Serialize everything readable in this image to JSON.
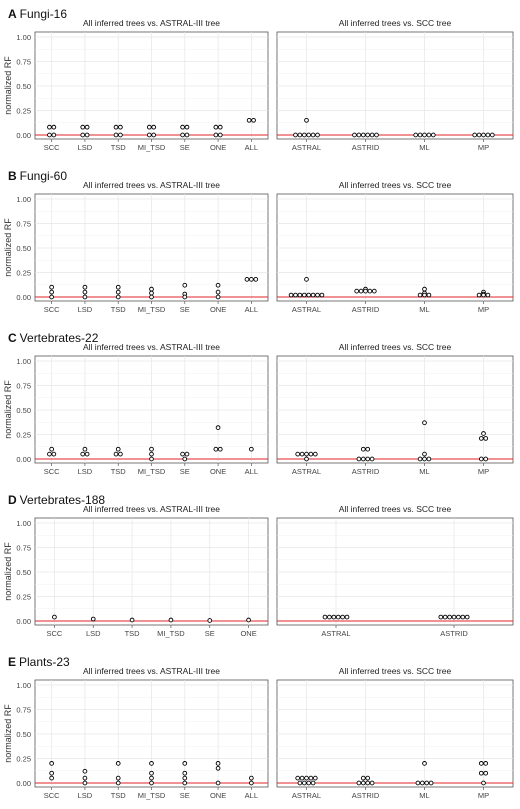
{
  "figure": {
    "panels": [
      {
        "letter": "A",
        "title": "Fungi-16"
      },
      {
        "letter": "B",
        "title": "Fungi-60"
      },
      {
        "letter": "C",
        "title": "Vertebrates-22"
      },
      {
        "letter": "D",
        "title": "Vertebrates-188"
      },
      {
        "letter": "E",
        "title": "Plants-23"
      }
    ],
    "left_facet_title": "All inferred trees vs. ASTRAL-III tree",
    "right_facet_title": "All inferred trees vs. SCC tree",
    "ylabel": "normalized RF",
    "yticks": [
      "0.00",
      "0.25",
      "0.50",
      "0.75",
      "1.00"
    ]
  },
  "chart_data": [
    {
      "type": "scatter",
      "panel": "A",
      "dataset": "Fungi-16",
      "ylim": [
        0,
        1.0
      ],
      "reference_line": 0.0,
      "grid": true,
      "left": {
        "categories": [
          "SCC",
          "LSD",
          "TSD",
          "MI_TSD",
          "SE",
          "ONE",
          "ALL"
        ],
        "points": [
          [
            0,
            0.08
          ],
          [
            0,
            0.08
          ],
          [
            0,
            0.0
          ],
          [
            0,
            0.0
          ],
          [
            1,
            0.08
          ],
          [
            1,
            0.08
          ],
          [
            1,
            0.0
          ],
          [
            1,
            0.0
          ],
          [
            2,
            0.08
          ],
          [
            2,
            0.08
          ],
          [
            2,
            0.0
          ],
          [
            2,
            0.0
          ],
          [
            3,
            0.08
          ],
          [
            3,
            0.08
          ],
          [
            3,
            0.0
          ],
          [
            3,
            0.0
          ],
          [
            4,
            0.08
          ],
          [
            4,
            0.08
          ],
          [
            4,
            0.0
          ],
          [
            4,
            0.0
          ],
          [
            5,
            0.08
          ],
          [
            5,
            0.08
          ],
          [
            5,
            0.0
          ],
          [
            5,
            0.0
          ],
          [
            6,
            0.15
          ],
          [
            6,
            0.15
          ]
        ]
      },
      "right": {
        "categories": [
          "ASTRAL",
          "ASTRID",
          "ML",
          "MP"
        ],
        "points": [
          [
            0,
            0.15
          ],
          [
            0,
            0.0
          ],
          [
            0,
            0.0
          ],
          [
            0,
            0.0
          ],
          [
            0,
            0.0
          ],
          [
            0,
            0.0
          ],
          [
            0,
            0.0
          ],
          [
            1,
            0.0
          ],
          [
            1,
            0.0
          ],
          [
            1,
            0.0
          ],
          [
            1,
            0.0
          ],
          [
            1,
            0.0
          ],
          [
            1,
            0.0
          ],
          [
            2,
            0.0
          ],
          [
            2,
            0.0
          ],
          [
            2,
            0.0
          ],
          [
            2,
            0.0
          ],
          [
            2,
            0.0
          ],
          [
            3,
            0.0
          ],
          [
            3,
            0.0
          ],
          [
            3,
            0.0
          ],
          [
            3,
            0.0
          ],
          [
            3,
            0.0
          ]
        ]
      }
    },
    {
      "type": "scatter",
      "panel": "B",
      "dataset": "Fungi-60",
      "ylim": [
        0,
        1.0
      ],
      "reference_line": 0.0,
      "grid": true,
      "left": {
        "categories": [
          "SCC",
          "LSD",
          "TSD",
          "MI_TSD",
          "SE",
          "ONE",
          "ALL"
        ],
        "points": [
          [
            0,
            0.1
          ],
          [
            0,
            0.05
          ],
          [
            0,
            0.0
          ],
          [
            1,
            0.1
          ],
          [
            1,
            0.05
          ],
          [
            1,
            0.0
          ],
          [
            2,
            0.1
          ],
          [
            2,
            0.05
          ],
          [
            2,
            0.0
          ],
          [
            3,
            0.08
          ],
          [
            3,
            0.04
          ],
          [
            3,
            0.0
          ],
          [
            4,
            0.12
          ],
          [
            4,
            0.03
          ],
          [
            4,
            0.0
          ],
          [
            5,
            0.12
          ],
          [
            5,
            0.05
          ],
          [
            5,
            0.0
          ],
          [
            6,
            0.18
          ],
          [
            6,
            0.18
          ],
          [
            6,
            0.18
          ]
        ]
      },
      "right": {
        "categories": [
          "ASTRAL",
          "ASTRID",
          "ML",
          "MP"
        ],
        "points": [
          [
            0,
            0.18
          ],
          [
            0,
            0.02
          ],
          [
            0,
            0.02
          ],
          [
            0,
            0.02
          ],
          [
            0,
            0.02
          ],
          [
            0,
            0.02
          ],
          [
            0,
            0.02
          ],
          [
            0,
            0.02
          ],
          [
            0,
            0.02
          ],
          [
            1,
            0.08
          ],
          [
            1,
            0.06
          ],
          [
            1,
            0.06
          ],
          [
            1,
            0.06
          ],
          [
            1,
            0.06
          ],
          [
            1,
            0.06
          ],
          [
            2,
            0.08
          ],
          [
            2,
            0.04
          ],
          [
            2,
            0.02
          ],
          [
            2,
            0.02
          ],
          [
            2,
            0.02
          ],
          [
            3,
            0.05
          ],
          [
            3,
            0.03
          ],
          [
            3,
            0.02
          ],
          [
            3,
            0.02
          ],
          [
            3,
            0.02
          ]
        ]
      }
    },
    {
      "type": "scatter",
      "panel": "C",
      "dataset": "Vertebrates-22",
      "ylim": [
        0,
        1.0
      ],
      "reference_line": 0.0,
      "grid": true,
      "left": {
        "categories": [
          "SCC",
          "LSD",
          "TSD",
          "MI_TSD",
          "SE",
          "ONE",
          "ALL"
        ],
        "points": [
          [
            0,
            0.1
          ],
          [
            0,
            0.05
          ],
          [
            0,
            0.05
          ],
          [
            1,
            0.1
          ],
          [
            1,
            0.05
          ],
          [
            1,
            0.05
          ],
          [
            2,
            0.1
          ],
          [
            2,
            0.05
          ],
          [
            2,
            0.05
          ],
          [
            3,
            0.1
          ],
          [
            3,
            0.05
          ],
          [
            3,
            0.0
          ],
          [
            4,
            0.05
          ],
          [
            4,
            0.05
          ],
          [
            4,
            0.0
          ],
          [
            5,
            0.32
          ],
          [
            5,
            0.1
          ],
          [
            5,
            0.1
          ],
          [
            6,
            0.1
          ]
        ]
      },
      "right": {
        "categories": [
          "ASTRAL",
          "ASTRID",
          "ML",
          "MP"
        ],
        "points": [
          [
            0,
            0.05
          ],
          [
            0,
            0.05
          ],
          [
            0,
            0.05
          ],
          [
            0,
            0.05
          ],
          [
            0,
            0.05
          ],
          [
            0,
            0.0
          ],
          [
            1,
            0.1
          ],
          [
            1,
            0.1
          ],
          [
            1,
            0.0
          ],
          [
            1,
            0.0
          ],
          [
            1,
            0.0
          ],
          [
            1,
            0.0
          ],
          [
            2,
            0.37
          ],
          [
            2,
            0.05
          ],
          [
            2,
            0.0
          ],
          [
            2,
            0.0
          ],
          [
            2,
            0.0
          ],
          [
            3,
            0.26
          ],
          [
            3,
            0.21
          ],
          [
            3,
            0.21
          ],
          [
            3,
            0.0
          ],
          [
            3,
            0.0
          ]
        ]
      }
    },
    {
      "type": "scatter",
      "panel": "D",
      "dataset": "Vertebrates-188",
      "ylim": [
        0,
        1.0
      ],
      "reference_line": 0.0,
      "grid": true,
      "left": {
        "categories": [
          "SCC",
          "LSD",
          "TSD",
          "MI_TSD",
          "SE",
          "ONE"
        ],
        "points": [
          [
            0,
            0.04
          ],
          [
            1,
            0.02
          ],
          [
            2,
            0.01
          ],
          [
            3,
            0.01
          ],
          [
            4,
            0.005
          ],
          [
            5,
            0.01
          ]
        ]
      },
      "right": {
        "categories": [
          "ASTRAL",
          "ASTRID"
        ],
        "points": [
          [
            0,
            0.04
          ],
          [
            0,
            0.04
          ],
          [
            0,
            0.04
          ],
          [
            0,
            0.04
          ],
          [
            0,
            0.04
          ],
          [
            0,
            0.04
          ],
          [
            1,
            0.04
          ],
          [
            1,
            0.04
          ],
          [
            1,
            0.04
          ],
          [
            1,
            0.04
          ],
          [
            1,
            0.04
          ],
          [
            1,
            0.04
          ],
          [
            1,
            0.04
          ]
        ]
      }
    },
    {
      "type": "scatter",
      "panel": "E",
      "dataset": "Plants-23",
      "ylim": [
        0,
        1.0
      ],
      "reference_line": 0.0,
      "grid": true,
      "left": {
        "categories": [
          "SCC",
          "LSD",
          "TSD",
          "MI_TSD",
          "SE",
          "ONE",
          "ALL"
        ],
        "points": [
          [
            0,
            0.2
          ],
          [
            0,
            0.1
          ],
          [
            0,
            0.05
          ],
          [
            1,
            0.12
          ],
          [
            1,
            0.05
          ],
          [
            1,
            0.0
          ],
          [
            2,
            0.2
          ],
          [
            2,
            0.05
          ],
          [
            2,
            0.0
          ],
          [
            3,
            0.2
          ],
          [
            3,
            0.1
          ],
          [
            3,
            0.05
          ],
          [
            3,
            0.0
          ],
          [
            4,
            0.2
          ],
          [
            4,
            0.1
          ],
          [
            4,
            0.05
          ],
          [
            4,
            0.0
          ],
          [
            5,
            0.2
          ],
          [
            5,
            0.15
          ],
          [
            5,
            0.0
          ],
          [
            6,
            0.05
          ],
          [
            6,
            0.0
          ]
        ]
      },
      "right": {
        "categories": [
          "ASTRAL",
          "ASTRID",
          "ML",
          "MP"
        ],
        "points": [
          [
            0,
            0.05
          ],
          [
            0,
            0.05
          ],
          [
            0,
            0.05
          ],
          [
            0,
            0.05
          ],
          [
            0,
            0.05
          ],
          [
            0,
            0.0
          ],
          [
            0,
            0.0
          ],
          [
            0,
            0.0
          ],
          [
            0,
            0.0
          ],
          [
            1,
            0.05
          ],
          [
            1,
            0.05
          ],
          [
            1,
            0.0
          ],
          [
            1,
            0.0
          ],
          [
            1,
            0.0
          ],
          [
            1,
            0.0
          ],
          [
            2,
            0.2
          ],
          [
            2,
            0.0
          ],
          [
            2,
            0.0
          ],
          [
            2,
            0.0
          ],
          [
            2,
            0.0
          ],
          [
            3,
            0.2
          ],
          [
            3,
            0.2
          ],
          [
            3,
            0.1
          ],
          [
            3,
            0.1
          ],
          [
            3,
            0.0
          ]
        ]
      }
    }
  ]
}
